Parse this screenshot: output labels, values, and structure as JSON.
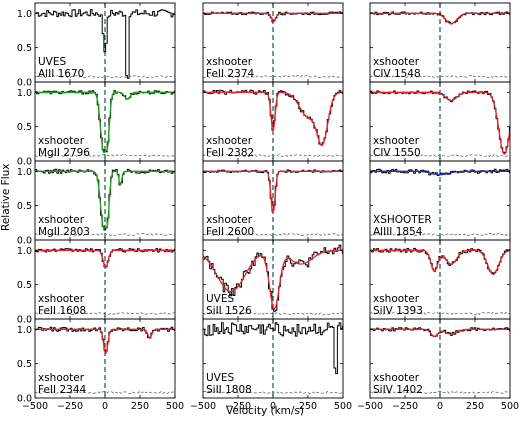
{
  "figure": {
    "ylabel": "Relative Flux",
    "xlabel": "Velocity (km/s)"
  },
  "chart_data": {
    "type": "line",
    "grid": false,
    "xlim": [
      -500,
      500
    ],
    "ylim": [
      0,
      1.15
    ],
    "x_ticks": [
      -500,
      -250,
      0,
      250,
      500
    ],
    "y_ticks": [
      0.0,
      0.5,
      1.0
    ],
    "y_tick_labels": [
      "0.0",
      "0.5",
      "1.0"
    ],
    "reference_line_velocity": 0,
    "colors": {
      "data": "#000000",
      "error": "#555555",
      "reference": "#2f5f5f",
      "fit_red": "#e8222a",
      "fit_green": "#20a020",
      "fit_blue": "#2030c0",
      "fit_magenta": "#d040d0"
    },
    "panels": [
      {
        "instrument": "UVES",
        "line": "AlII 1670",
        "col": 0,
        "row": 0,
        "fit": "none",
        "components": [
          {
            "v": 0,
            "depth": 0.55,
            "width": 12
          }
        ],
        "spike": [
          {
            "v": 155,
            "depth": 0.9
          }
        ],
        "noise": 0.055
      },
      {
        "instrument": "xshooter",
        "line": "MgII 2796",
        "col": 0,
        "row": 1,
        "fit": "green",
        "components": [
          {
            "v": -10,
            "depth": 0.85,
            "width": 22
          },
          {
            "v": 15,
            "depth": 0.7,
            "width": 15
          },
          {
            "v": 160,
            "depth": 0.1,
            "width": 20
          }
        ],
        "noise": 0.025
      },
      {
        "instrument": "xshooter",
        "line": "MgII 2803",
        "col": 0,
        "row": 2,
        "fit": "green",
        "components": [
          {
            "v": -10,
            "depth": 0.8,
            "width": 22
          },
          {
            "v": 15,
            "depth": 0.65,
            "width": 14
          },
          {
            "v": 110,
            "depth": 0.2,
            "width": 10
          }
        ],
        "noise": 0.03
      },
      {
        "instrument": "xshooter",
        "line": "FeII 1608",
        "col": 0,
        "row": 3,
        "fit": "red",
        "components": [
          {
            "v": 5,
            "depth": 0.25,
            "width": 18
          }
        ],
        "noise": 0.025
      },
      {
        "instrument": "xshooter",
        "line": "FeII 2344",
        "col": 0,
        "row": 4,
        "fit": "red",
        "components": [
          {
            "v": 5,
            "depth": 0.35,
            "width": 15
          },
          {
            "v": 320,
            "depth": 0.12,
            "width": 15
          }
        ],
        "noise": 0.03
      },
      {
        "instrument": "xshooter",
        "line": "FeII 2374",
        "col": 1,
        "row": 0,
        "fit": "red",
        "components": [
          {
            "v": 5,
            "depth": 0.12,
            "width": 15
          }
        ],
        "noise": 0.02
      },
      {
        "instrument": "xshooter",
        "line": "FeII 2382",
        "col": 1,
        "row": 1,
        "fit": "red",
        "components": [
          {
            "v": 0,
            "depth": 0.55,
            "width": 15
          },
          {
            "v": 250,
            "depth": 0.35,
            "width": 60
          },
          {
            "v": 350,
            "depth": 0.75,
            "width": 40
          }
        ],
        "noise": 0.03
      },
      {
        "instrument": "xshooter",
        "line": "FeII 2600",
        "col": 1,
        "row": 2,
        "fit": "red",
        "components": [
          {
            "v": 0,
            "depth": 0.6,
            "width": 15
          }
        ],
        "noise": 0.02
      },
      {
        "instrument": "UVES",
        "line": "SiII 1526",
        "col": 1,
        "row": 3,
        "fit": "red",
        "components": [
          {
            "v": -300,
            "depth": 0.6,
            "width": 100
          },
          {
            "v": 10,
            "depth": 0.85,
            "width": 35
          },
          {
            "v": 200,
            "depth": 0.2,
            "width": 80
          }
        ],
        "noise": 0.08
      },
      {
        "instrument": "UVES",
        "line": "SiII 1808",
        "col": 1,
        "row": 4,
        "fit": "none",
        "components": [],
        "spike": [
          {
            "v": 440,
            "depth": 0.6
          }
        ],
        "noise": 0.1
      },
      {
        "instrument": "xshooter",
        "line": "CIV 1548",
        "col": 2,
        "row": 0,
        "fit": "red",
        "components": [
          {
            "v": 80,
            "depth": 0.15,
            "width": 40
          }
        ],
        "noise": 0.02
      },
      {
        "instrument": "xshooter",
        "line": "CIV 1550",
        "col": 2,
        "row": 1,
        "fit": "red",
        "components": [
          {
            "v": 80,
            "depth": 0.12,
            "width": 40
          },
          {
            "v": 460,
            "depth": 0.9,
            "width": 40
          }
        ],
        "noise": 0.02
      },
      {
        "instrument": "XSHOOTER",
        "line": "AlIII 1854",
        "col": 2,
        "row": 2,
        "fit": "blue",
        "components": [
          {
            "v": 0,
            "depth": 0.05,
            "width": 60
          }
        ],
        "noise": 0.03
      },
      {
        "instrument": "xshooter",
        "line": "SiIV 1393",
        "col": 2,
        "row": 3,
        "fit": "red",
        "components": [
          {
            "v": -40,
            "depth": 0.3,
            "width": 25
          },
          {
            "v": 80,
            "depth": 0.2,
            "width": 40
          },
          {
            "v": 380,
            "depth": 0.35,
            "width": 40
          }
        ],
        "noise": 0.03
      },
      {
        "instrument": "xshooter",
        "line": "SiIV 1402",
        "col": 2,
        "row": 4,
        "fit": "red",
        "components": [
          {
            "v": -40,
            "depth": 0.1,
            "width": 25
          },
          {
            "v": 80,
            "depth": 0.07,
            "width": 40
          }
        ],
        "noise": 0.025
      }
    ]
  }
}
